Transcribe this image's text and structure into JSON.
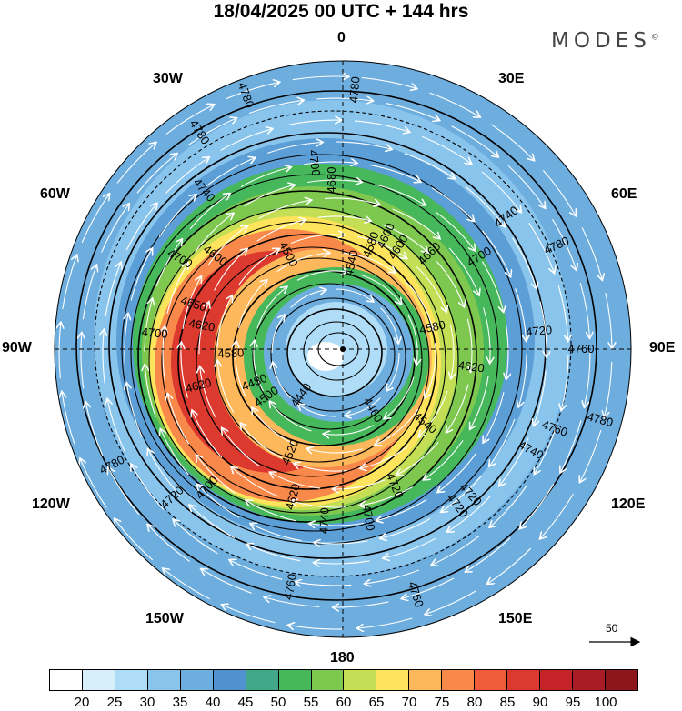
{
  "title": "18/04/2025  00 UTC  + 144 hrs",
  "brand": "MODES",
  "brand_mark": "©",
  "longitude_labels": {
    "n": "0",
    "ne": "30E",
    "nee": "60E",
    "e": "90E",
    "see": "120E",
    "se": "150E",
    "s": "180",
    "sw": "150W",
    "sww": "120W",
    "w": "90W",
    "nww": "60W",
    "nw": "30W"
  },
  "reference_vector": {
    "value": "50"
  },
  "contour_labels": [
    "4760",
    "4720",
    "4780",
    "4720",
    "4620",
    "4700",
    "4620",
    "4500",
    "4760",
    "4480",
    "4600",
    "4760",
    "4700",
    "4580",
    "4440",
    "4700",
    "4540",
    "4580",
    "4660",
    "4740",
    "4740",
    "4620",
    "4500",
    "4540",
    "4460",
    "4650",
    "4780",
    "4520",
    "4780",
    "4740",
    "4620",
    "4600",
    "4700",
    "4600",
    "4720",
    "4700",
    "4680",
    "4720",
    "4700",
    "4740",
    "4760",
    "4780",
    "4780",
    "4780",
    "4580",
    "4720"
  ],
  "colorbar": {
    "colors": [
      "#ffffff",
      "#d6effb",
      "#afdcf6",
      "#89c4ec",
      "#6eaedf",
      "#4f92cf",
      "#41a889",
      "#46b75b",
      "#7ec850",
      "#c4de56",
      "#fde45c",
      "#fcb85a",
      "#f8894a",
      "#ee5d37",
      "#dc3a2e",
      "#c52328",
      "#aa1c23",
      "#8d161b"
    ],
    "tick_labels": [
      "20",
      "25",
      "30",
      "35",
      "40",
      "45",
      "50",
      "55",
      "60",
      "65",
      "70",
      "75",
      "80",
      "85",
      "90",
      "95",
      "100"
    ]
  }
}
